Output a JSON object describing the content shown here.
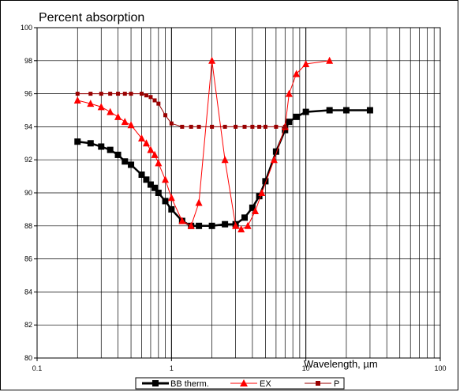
{
  "chart_data": {
    "type": "line",
    "title": "Percent absorption",
    "xlabel": "Wavelength, µm",
    "ylabel": "",
    "x_scale": "log",
    "xlim": [
      0.1,
      100
    ],
    "ylim": [
      80,
      100
    ],
    "x_ticks": [
      "0.1",
      "1",
      "10",
      "100"
    ],
    "y_ticks": [
      "80",
      "82",
      "84",
      "86",
      "88",
      "90",
      "92",
      "94",
      "96",
      "98",
      "100"
    ],
    "grid": true,
    "legend_position": "bottom",
    "series": [
      {
        "name": "BB therm.",
        "color": "#000000",
        "marker": "square",
        "x": [
          0.2,
          0.25,
          0.3,
          0.35,
          0.4,
          0.45,
          0.5,
          0.6,
          0.65,
          0.7,
          0.75,
          0.8,
          0.9,
          1.0,
          1.2,
          1.4,
          1.6,
          2.0,
          2.5,
          3.0,
          3.5,
          4.0,
          4.5,
          5.0,
          6.0,
          7.0,
          7.5,
          8.5,
          10,
          15,
          20,
          30
        ],
        "y": [
          93.1,
          93.0,
          92.8,
          92.6,
          92.3,
          91.9,
          91.7,
          91.1,
          90.8,
          90.5,
          90.3,
          90.0,
          89.5,
          89.0,
          88.3,
          88.0,
          88.0,
          88.0,
          88.1,
          88.1,
          88.5,
          89.1,
          89.8,
          90.7,
          92.5,
          93.8,
          94.3,
          94.6,
          94.9,
          95.0,
          95.0,
          95.0
        ]
      },
      {
        "name": "EX",
        "color": "#ff0000",
        "marker": "triangle",
        "x": [
          0.2,
          0.25,
          0.3,
          0.35,
          0.4,
          0.45,
          0.5,
          0.6,
          0.65,
          0.7,
          0.75,
          0.8,
          0.9,
          1.0,
          1.2,
          1.4,
          1.6,
          2.0,
          2.5,
          3.0,
          3.3,
          3.7,
          4.2,
          4.7,
          5.8,
          7.0,
          7.5,
          8.5,
          10,
          15
        ],
        "y": [
          95.6,
          95.4,
          95.2,
          94.9,
          94.6,
          94.3,
          94.1,
          93.3,
          93.0,
          92.6,
          92.3,
          91.8,
          90.8,
          89.7,
          88.3,
          88.0,
          89.4,
          98.0,
          92.0,
          88.0,
          87.8,
          88.0,
          88.9,
          90.0,
          92.0,
          94.0,
          96.0,
          97.2,
          97.8,
          98.0
        ]
      },
      {
        "name": "P",
        "color": "#990000",
        "marker": "small-square",
        "x": [
          0.2,
          0.25,
          0.3,
          0.35,
          0.4,
          0.45,
          0.5,
          0.6,
          0.65,
          0.7,
          0.75,
          0.8,
          0.9,
          1.0,
          1.2,
          1.4,
          1.6,
          2.0,
          2.5,
          3.0,
          3.5,
          4.0,
          4.5,
          5.0,
          6.0,
          7.0
        ],
        "y": [
          96.0,
          96.0,
          96.0,
          96.0,
          96.0,
          96.0,
          96.0,
          96.0,
          95.9,
          95.8,
          95.6,
          95.4,
          94.7,
          94.2,
          94.0,
          94.0,
          94.0,
          94.0,
          94.0,
          94.0,
          94.0,
          94.0,
          94.0,
          94.0,
          94.0,
          94.0
        ]
      }
    ]
  }
}
